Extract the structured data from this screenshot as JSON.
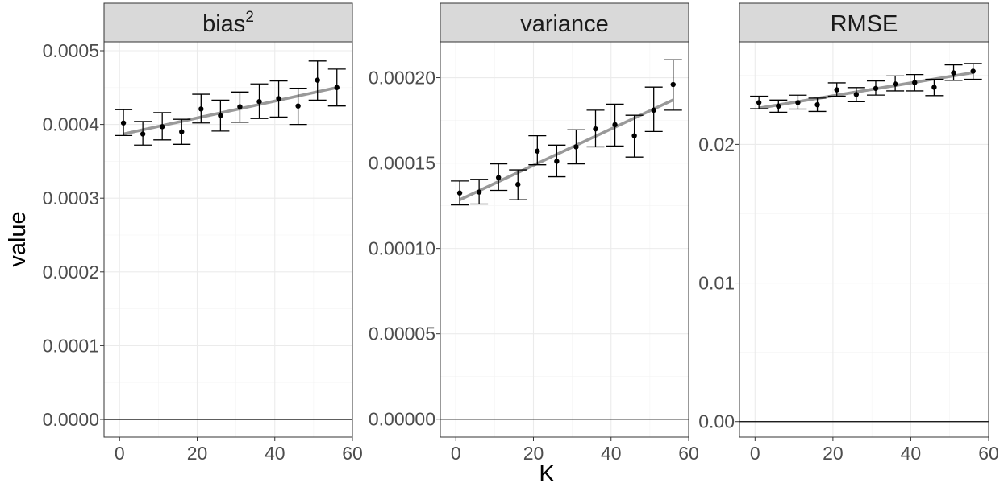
{
  "chart_data": {
    "type": "scatter",
    "layout": "faceted",
    "xlabel": "K",
    "ylabel": "value",
    "facets": [
      {
        "id": "bias2",
        "title": "bias",
        "title_superscript": "2",
        "xlim": [
          -4,
          60
        ],
        "ylim": [
          -2.4e-05,
          0.000512
        ],
        "xticks": [
          0,
          20,
          40,
          60
        ],
        "xtick_labels": [
          "0",
          "20",
          "40",
          "60"
        ],
        "yticks": [
          0,
          0.0001,
          0.0002,
          0.0003,
          0.0004,
          0.0005
        ],
        "ytick_labels": [
          "0.0000",
          "0.0001",
          "0.0002",
          "0.0003",
          "0.0004",
          "0.0005"
        ],
        "hline": 0,
        "points": [
          {
            "x": 1,
            "y": 0.000402,
            "lo": 0.000385,
            "hi": 0.00042
          },
          {
            "x": 6,
            "y": 0.000387,
            "lo": 0.000372,
            "hi": 0.000404
          },
          {
            "x": 11,
            "y": 0.000397,
            "lo": 0.000379,
            "hi": 0.000416
          },
          {
            "x": 16,
            "y": 0.00039,
            "lo": 0.000373,
            "hi": 0.000407
          },
          {
            "x": 21,
            "y": 0.000421,
            "lo": 0.000402,
            "hi": 0.000441
          },
          {
            "x": 26,
            "y": 0.000412,
            "lo": 0.000391,
            "hi": 0.000433
          },
          {
            "x": 31,
            "y": 0.000424,
            "lo": 0.000403,
            "hi": 0.000444
          },
          {
            "x": 36,
            "y": 0.000431,
            "lo": 0.000408,
            "hi": 0.000455
          },
          {
            "x": 41,
            "y": 0.000435,
            "lo": 0.00041,
            "hi": 0.000459
          },
          {
            "x": 46,
            "y": 0.000425,
            "lo": 0.0004,
            "hi": 0.000449
          },
          {
            "x": 51,
            "y": 0.00046,
            "lo": 0.000433,
            "hi": 0.000486
          },
          {
            "x": 56,
            "y": 0.00045,
            "lo": 0.000425,
            "hi": 0.000475
          }
        ],
        "fit": {
          "x": [
            1,
            56
          ],
          "y": [
            0.000387,
            0.00045
          ]
        }
      },
      {
        "id": "variance",
        "title": "variance",
        "title_superscript": "",
        "xlim": [
          -4,
          60
        ],
        "ylim": [
          -1.05e-05,
          0.000221
        ],
        "xticks": [
          0,
          20,
          40,
          60
        ],
        "xtick_labels": [
          "0",
          "20",
          "40",
          "60"
        ],
        "yticks": [
          0,
          5e-05,
          0.0001,
          0.00015,
          0.0002
        ],
        "ytick_labels": [
          "0.00000",
          "0.00005",
          "0.00010",
          "0.00015",
          "0.00020"
        ],
        "hline": 0,
        "points": [
          {
            "x": 1,
            "y": 0.0001325,
            "lo": 0.0001255,
            "hi": 0.0001395
          },
          {
            "x": 6,
            "y": 0.000133,
            "lo": 0.000126,
            "hi": 0.0001405
          },
          {
            "x": 11,
            "y": 0.0001415,
            "lo": 0.000134,
            "hi": 0.0001495
          },
          {
            "x": 16,
            "y": 0.0001375,
            "lo": 0.0001285,
            "hi": 0.000146
          },
          {
            "x": 21,
            "y": 0.000157,
            "lo": 0.000149,
            "hi": 0.000166
          },
          {
            "x": 26,
            "y": 0.000151,
            "lo": 0.000142,
            "hi": 0.0001605
          },
          {
            "x": 31,
            "y": 0.0001595,
            "lo": 0.0001495,
            "hi": 0.0001695
          },
          {
            "x": 36,
            "y": 0.00017,
            "lo": 0.0001595,
            "hi": 0.000181
          },
          {
            "x": 41,
            "y": 0.0001725,
            "lo": 0.00016,
            "hi": 0.0001845
          },
          {
            "x": 46,
            "y": 0.000166,
            "lo": 0.0001535,
            "hi": 0.000178
          },
          {
            "x": 51,
            "y": 0.000181,
            "lo": 0.0001685,
            "hi": 0.0001945
          },
          {
            "x": 56,
            "y": 0.000196,
            "lo": 0.000181,
            "hi": 0.0002105
          }
        ],
        "fit": {
          "x": [
            1,
            56
          ],
          "y": [
            0.0001285,
            0.000187
          ]
        }
      },
      {
        "id": "rmse",
        "title": "RMSE",
        "title_superscript": "",
        "xlim": [
          -4,
          60
        ],
        "ylim": [
          -0.00112,
          0.0274
        ],
        "xticks": [
          0,
          20,
          40,
          60
        ],
        "xtick_labels": [
          "0",
          "20",
          "40",
          "60"
        ],
        "yticks": [
          0,
          0.01,
          0.02
        ],
        "ytick_labels": [
          "0.00",
          "0.01",
          "0.02"
        ],
        "hline": 0,
        "points": [
          {
            "x": 1,
            "y": 0.02302,
            "lo": 0.02258,
            "hi": 0.02348
          },
          {
            "x": 6,
            "y": 0.02276,
            "lo": 0.02232,
            "hi": 0.0232
          },
          {
            "x": 11,
            "y": 0.02302,
            "lo": 0.02255,
            "hi": 0.02355
          },
          {
            "x": 16,
            "y": 0.02286,
            "lo": 0.02238,
            "hi": 0.02334
          },
          {
            "x": 21,
            "y": 0.02394,
            "lo": 0.02348,
            "hi": 0.02444
          },
          {
            "x": 26,
            "y": 0.0236,
            "lo": 0.02308,
            "hi": 0.0241
          },
          {
            "x": 31,
            "y": 0.02404,
            "lo": 0.02356,
            "hi": 0.02458
          },
          {
            "x": 36,
            "y": 0.02436,
            "lo": 0.02386,
            "hi": 0.02494
          },
          {
            "x": 41,
            "y": 0.02446,
            "lo": 0.02386,
            "hi": 0.02504
          },
          {
            "x": 46,
            "y": 0.02412,
            "lo": 0.02352,
            "hi": 0.0247
          },
          {
            "x": 51,
            "y": 0.02516,
            "lo": 0.02462,
            "hi": 0.02574
          },
          {
            "x": 56,
            "y": 0.02528,
            "lo": 0.0247,
            "hi": 0.02584
          }
        ],
        "fit": {
          "x": [
            1,
            56
          ],
          "y": [
            0.02262,
            0.02518
          ]
        }
      }
    ],
    "colors": {
      "point": "#000000",
      "errorbar": "#000000",
      "fit_line": "#999999",
      "strip_background": "#d9d9d9",
      "grid": "#ebebeb",
      "zero_line": "#000000"
    },
    "grid": true,
    "legend": "none"
  }
}
